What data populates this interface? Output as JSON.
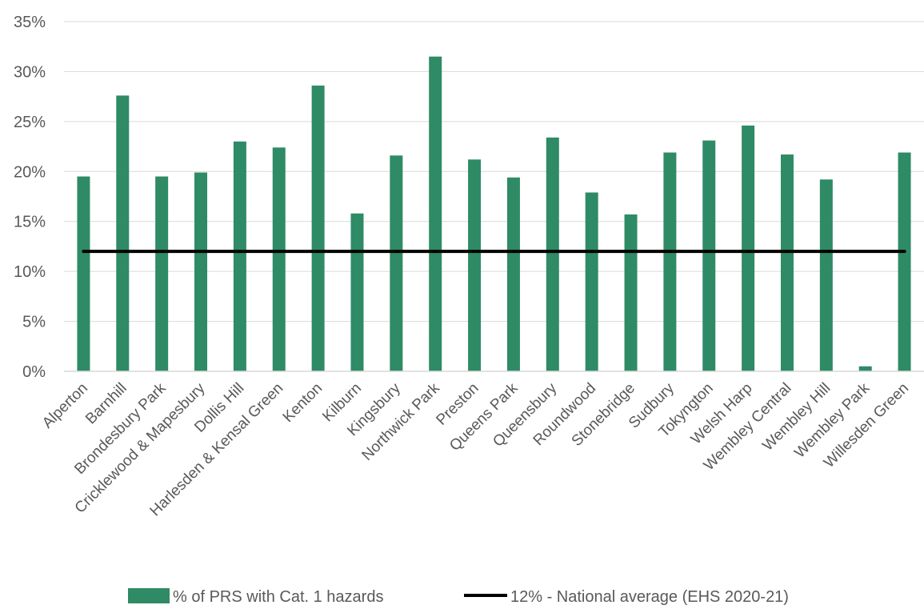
{
  "chart_data": {
    "type": "bar",
    "title": "",
    "xlabel": "",
    "ylabel": "",
    "ylim": [
      0,
      35
    ],
    "yticks": [
      "0%",
      "5%",
      "10%",
      "15%",
      "20%",
      "25%",
      "30%",
      "35%"
    ],
    "ytick_values": [
      0,
      5,
      10,
      15,
      20,
      25,
      30,
      35
    ],
    "grid": true,
    "legend_position": "bottom",
    "categories": [
      "Alperton",
      "Barnhill",
      "Brondesbury Park",
      "Cricklewood & Mapesbury",
      "Dollis Hill",
      "Harlesden & Kensal Green",
      "Kenton",
      "Kilburn",
      "Kingsbury",
      "Northwick Park",
      "Preston",
      "Queens Park",
      "Queensbury",
      "Roundwood",
      "Stonebridge",
      "Sudbury",
      "Tokyngton",
      "Welsh Harp",
      "Wembley Central",
      "Wembley Hill",
      "Wembley Park",
      "Willesden Green"
    ],
    "series": [
      {
        "name": "% of PRS with Cat. 1 hazards",
        "kind": "bar",
        "color": "#2e8b65",
        "values": [
          19.5,
          27.6,
          19.5,
          19.9,
          23.0,
          22.4,
          28.6,
          15.8,
          21.6,
          31.5,
          21.2,
          19.4,
          23.4,
          17.9,
          15.7,
          21.9,
          23.1,
          24.6,
          21.7,
          19.2,
          0.5,
          21.9
        ]
      },
      {
        "name": "12% - National average (EHS 2020-21)",
        "kind": "line",
        "color": "#000000",
        "value": 12
      }
    ]
  }
}
